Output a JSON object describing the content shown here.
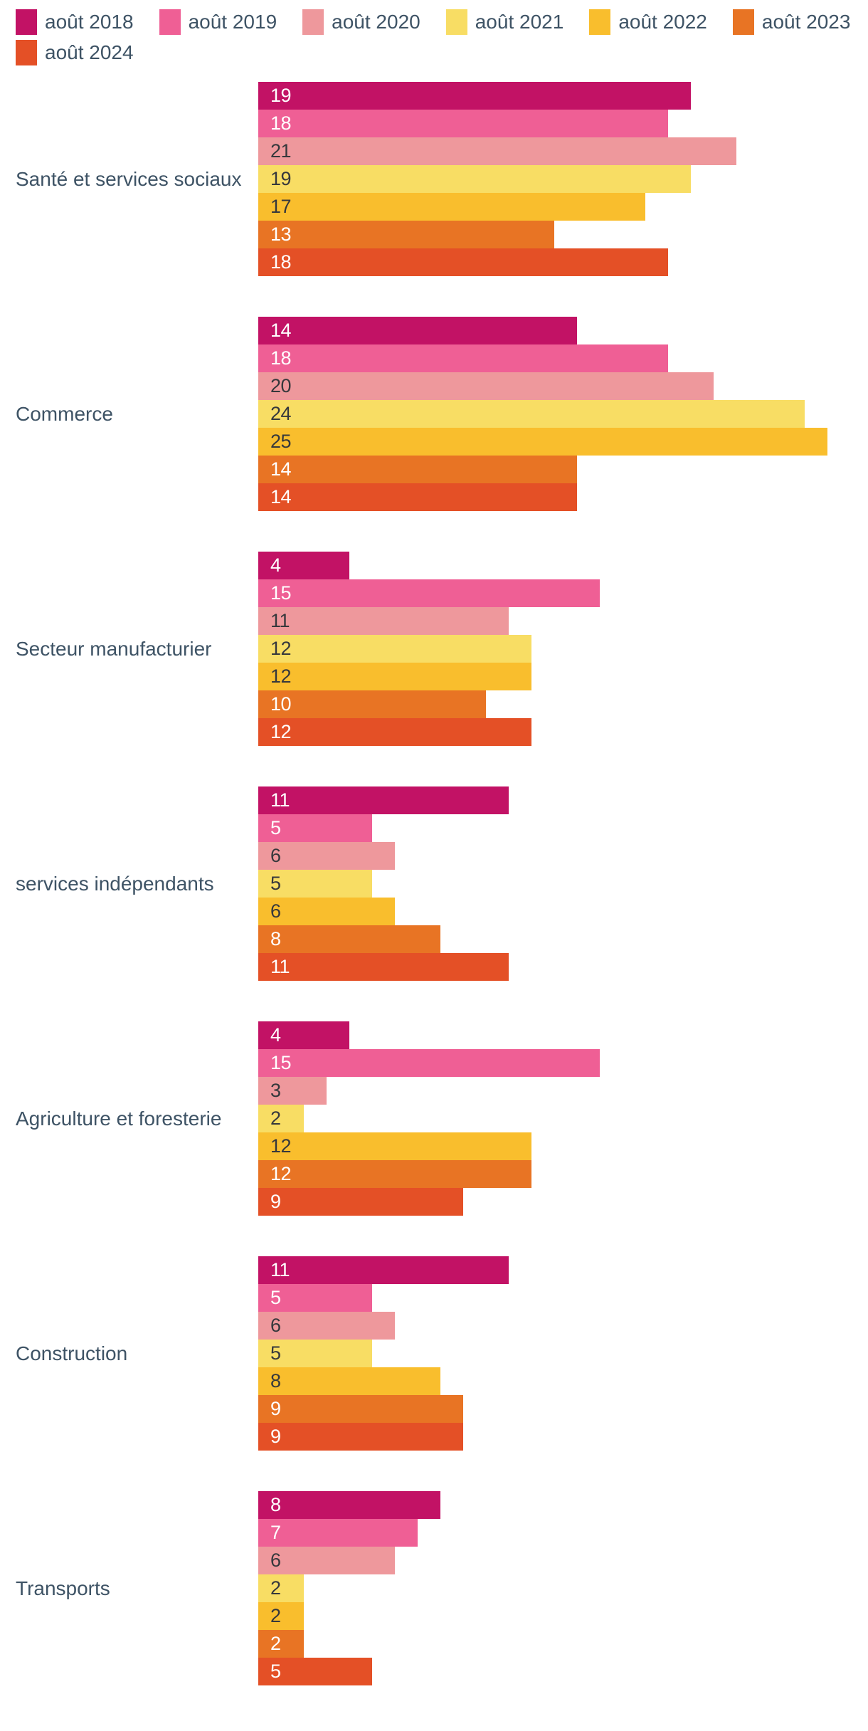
{
  "chart_data": {
    "type": "bar",
    "orientation": "horizontal",
    "title": "",
    "xlabel": "",
    "ylabel": "",
    "xlim": [
      0,
      25
    ],
    "grid": false,
    "axes_visible": false,
    "legend_position": "top-left",
    "value_labels": "inside-start",
    "categories": [
      "Santé et services sociaux",
      "Commerce",
      "Secteur manufacturier",
      "services indépendants",
      "Agriculture et foresterie",
      "Construction",
      "Transports"
    ],
    "series": [
      {
        "name": "août 2018",
        "color": "#c21265",
        "label_color": "#ffffff",
        "values": [
          19,
          14,
          4,
          11,
          4,
          11,
          8
        ]
      },
      {
        "name": "août 2019",
        "color": "#ef5f95",
        "label_color": "#ffffff",
        "values": [
          18,
          18,
          15,
          5,
          15,
          5,
          7
        ]
      },
      {
        "name": "août 2020",
        "color": "#ee989c",
        "label_color": "#36383c",
        "values": [
          21,
          20,
          11,
          6,
          3,
          6,
          6
        ]
      },
      {
        "name": "août 2021",
        "color": "#f8dd64",
        "label_color": "#36383c",
        "values": [
          19,
          24,
          12,
          5,
          2,
          5,
          2
        ]
      },
      {
        "name": "août 2022",
        "color": "#f9be2d",
        "label_color": "#36383c",
        "values": [
          17,
          25,
          12,
          6,
          12,
          8,
          2
        ]
      },
      {
        "name": "août 2023",
        "color": "#e87424",
        "label_color": "#ffffff",
        "values": [
          13,
          14,
          10,
          8,
          12,
          9,
          2
        ]
      },
      {
        "name": "août 2024",
        "color": "#e45026",
        "label_color": "#ffffff",
        "values": [
          18,
          14,
          12,
          11,
          9,
          9,
          5
        ]
      }
    ],
    "text_color": "#3e5365"
  }
}
